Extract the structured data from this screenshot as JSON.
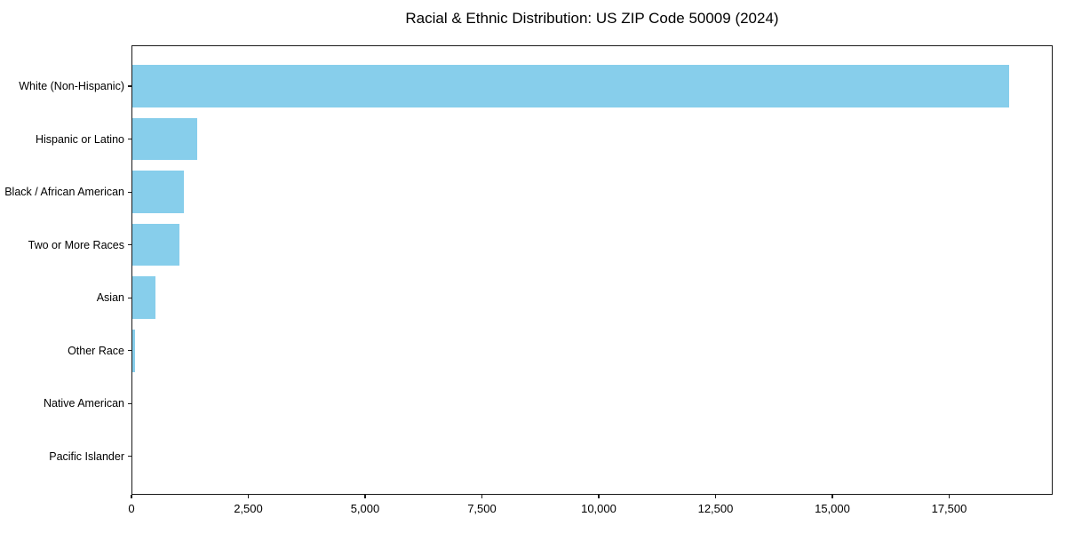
{
  "chart_data": {
    "type": "bar",
    "orientation": "horizontal",
    "title": "Racial & Ethnic Distribution: US ZIP Code 50009 (2024)",
    "categories": [
      "White (Non-Hispanic)",
      "Hispanic or Latino",
      "Black / African American",
      "Two or More Races",
      "Asian",
      "Other Race",
      "Native American",
      "Pacific Islander"
    ],
    "values": [
      18780,
      1400,
      1120,
      1020,
      505,
      80,
      10,
      4
    ],
    "xlabel": "",
    "ylabel": "",
    "xlim": [
      0,
      19715
    ],
    "xticks": [
      0,
      2500,
      5000,
      7500,
      10000,
      12500,
      15000,
      17500
    ],
    "xtick_labels": [
      "0",
      "2,500",
      "5,000",
      "7,500",
      "10,000",
      "12,500",
      "15,000",
      "17,500"
    ],
    "bar_color": "#87CEEB",
    "text_color": "#000000",
    "spine_color": "#1a1a1a",
    "grid": false,
    "legend": null
  }
}
